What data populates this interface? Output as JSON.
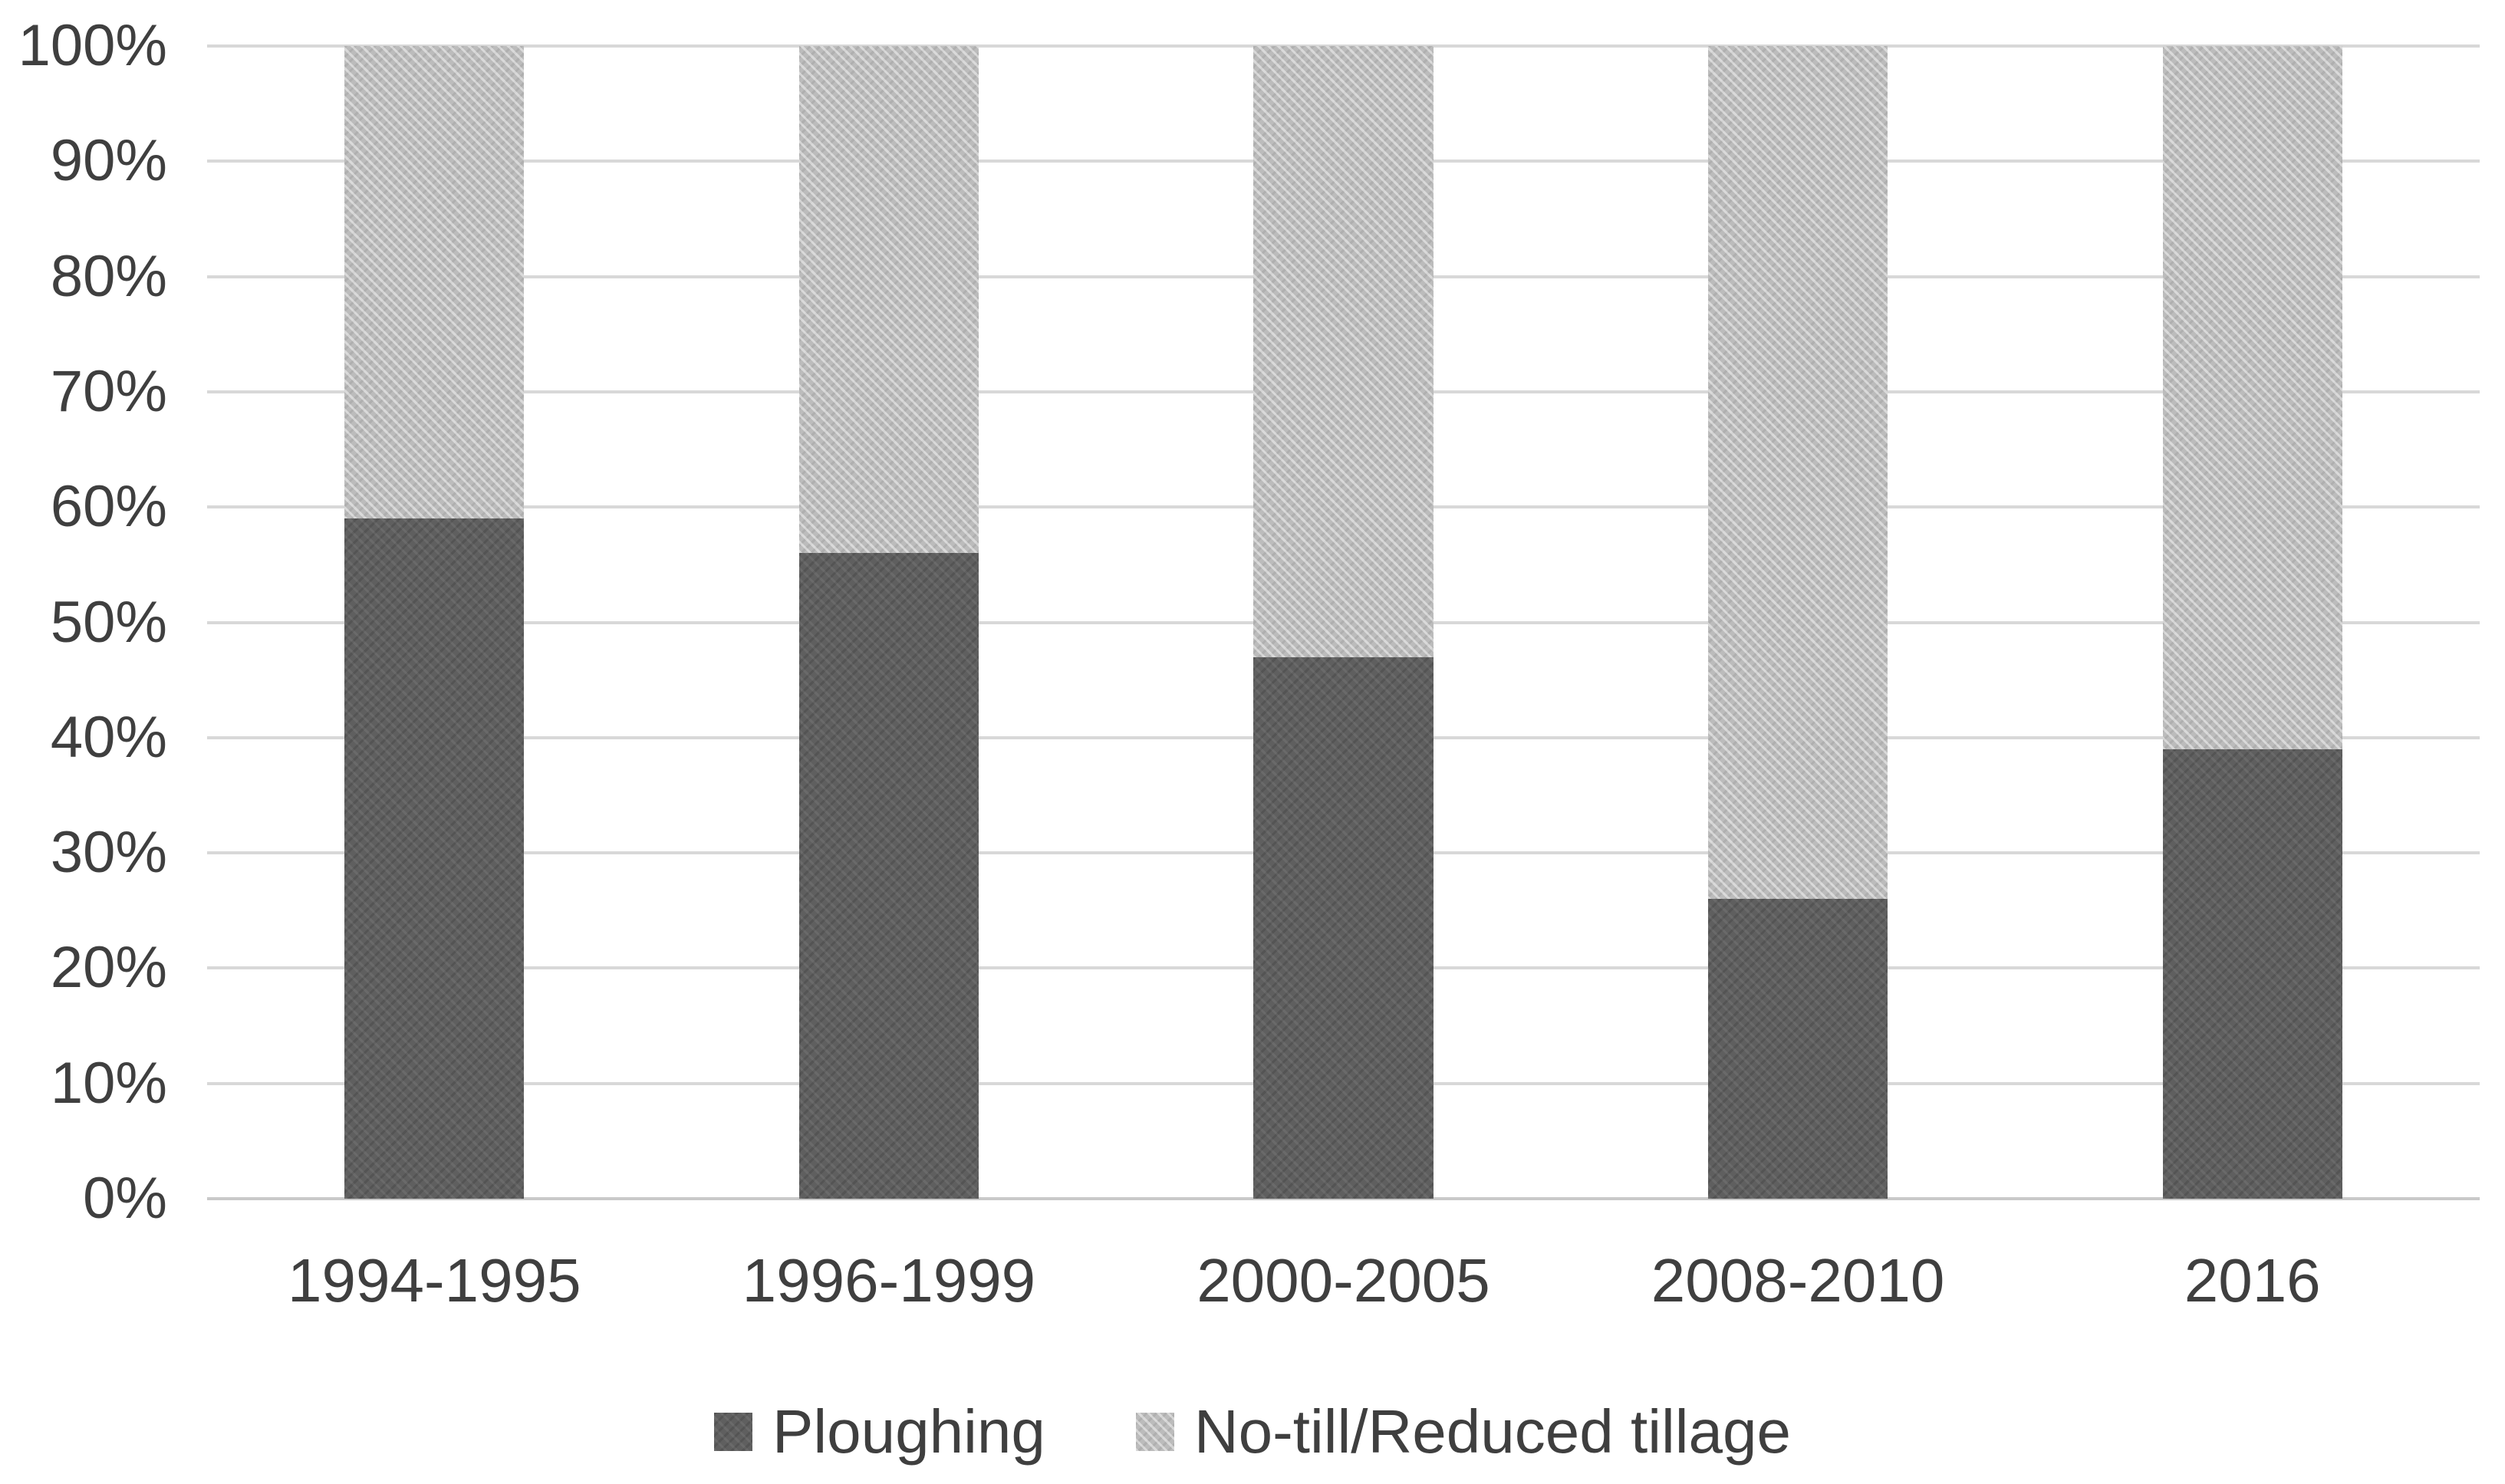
{
  "chart_data": {
    "type": "bar",
    "subtype": "stacked-100-percent",
    "title": "",
    "categories": [
      "1994-1995",
      "1996-1999",
      "2000-2005",
      "2008-2010",
      "2016"
    ],
    "series": [
      {
        "name": "Ploughing",
        "values": [
          59,
          56,
          47,
          26,
          39
        ],
        "color": "#5f5f5f"
      },
      {
        "name": "No-till/Reduced tillage",
        "values": [
          41,
          44,
          53,
          74,
          61
        ],
        "color": "#bcbcbc"
      }
    ],
    "y_axis": {
      "min": 0,
      "max": 100,
      "tick_step": 10,
      "tick_labels": [
        "0%",
        "10%",
        "20%",
        "30%",
        "40%",
        "50%",
        "60%",
        "70%",
        "80%",
        "90%",
        "100%"
      ]
    },
    "x_axis": {
      "labels": [
        "1994-1995",
        "1996-1999",
        "2000-2005",
        "2008-2010",
        "2016"
      ]
    },
    "legend": {
      "position": "bottom",
      "entries": [
        "Ploughing",
        "No-till/Reduced tillage"
      ]
    },
    "grid": "horizontal",
    "colors": {
      "grid_line": "#d8d8d8",
      "axis_line": "#c9c9c9",
      "text": "#3f3f3f",
      "background": "#ffffff",
      "series_dark": "#5f5f5f",
      "series_light": "#bcbcbc"
    }
  }
}
